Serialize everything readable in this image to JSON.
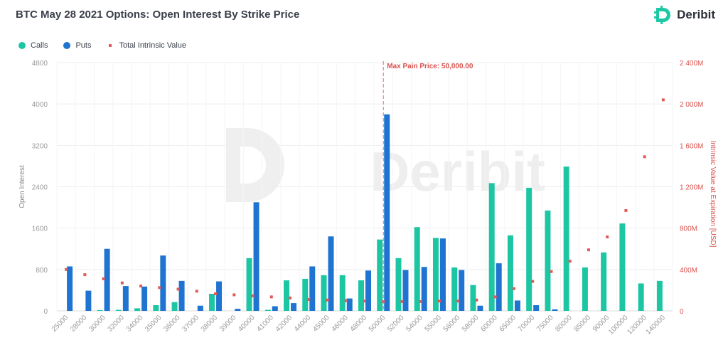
{
  "title": "BTC May 28 2021 Options: Open Interest By Strike Price",
  "brand": {
    "name": "Deribit",
    "color": "#1ec8a5",
    "logo_icon": "deribit-logo-icon",
    "watermark": "Deribit"
  },
  "legend": [
    {
      "label": "Calls",
      "color": "#1cc6a3"
    },
    {
      "label": "Puts",
      "color": "#1e74d0"
    },
    {
      "label": "Total Intrinsic Value",
      "color": "#e05a5a"
    }
  ],
  "chart_data": {
    "type": "bar",
    "categories": [
      "25000",
      "28000",
      "30000",
      "32000",
      "34000",
      "35000",
      "36000",
      "37000",
      "38000",
      "39000",
      "40000",
      "41000",
      "42000",
      "44000",
      "45000",
      "46000",
      "48000",
      "50000",
      "52000",
      "54000",
      "55000",
      "56000",
      "58000",
      "60000",
      "65000",
      "70000",
      "75000",
      "80000",
      "85000",
      "90000",
      "100000",
      "120000",
      "140000"
    ],
    "series": [
      {
        "name": "Calls",
        "color": "#1cc6a3",
        "axis": "left",
        "values": [
          0,
          0,
          15,
          20,
          50,
          110,
          170,
          0,
          330,
          0,
          1020,
          20,
          590,
          620,
          690,
          690,
          590,
          1380,
          1020,
          1620,
          1410,
          840,
          500,
          2470,
          1460,
          2380,
          1940,
          2790,
          840,
          1130,
          1690,
          530,
          580
        ]
      },
      {
        "name": "Puts",
        "color": "#1e74d0",
        "axis": "left",
        "values": [
          860,
          390,
          1200,
          480,
          470,
          1070,
          580,
          100,
          570,
          40,
          2100,
          90,
          150,
          860,
          1440,
          240,
          780,
          3800,
          790,
          850,
          1400,
          790,
          100,
          920,
          200,
          110,
          30,
          0,
          0,
          0,
          0,
          0,
          0
        ]
      },
      {
        "name": "Total Intrinsic Value",
        "color": "#e05a5a",
        "axis": "right",
        "type": "scatter",
        "values": [
          400,
          350,
          310,
          270,
          240,
          225,
          210,
          190,
          165,
          155,
          145,
          135,
          125,
          110,
          105,
          100,
          95,
          90,
          90,
          90,
          95,
          95,
          105,
          135,
          215,
          285,
          380,
          480,
          590,
          715,
          970,
          1490,
          2040
        ]
      }
    ],
    "y_left": {
      "label": "Open Interest",
      "ylim": [
        0,
        4800
      ],
      "ticks": [
        "0",
        "800",
        "1600",
        "2400",
        "3200",
        "4000",
        "4800"
      ]
    },
    "y_right": {
      "label": "Intrinsic Value at Expiration [USD]",
      "ylim": [
        0,
        2400
      ],
      "ticks": [
        "0",
        "400M",
        "800M",
        "1 200M",
        "1 600M",
        "2 000M",
        "2 400M"
      ]
    },
    "max_pain": {
      "label": "Max Pain Price: 50,000.00",
      "strike": "50000"
    },
    "grid": true,
    "legend_position": "top-left"
  }
}
